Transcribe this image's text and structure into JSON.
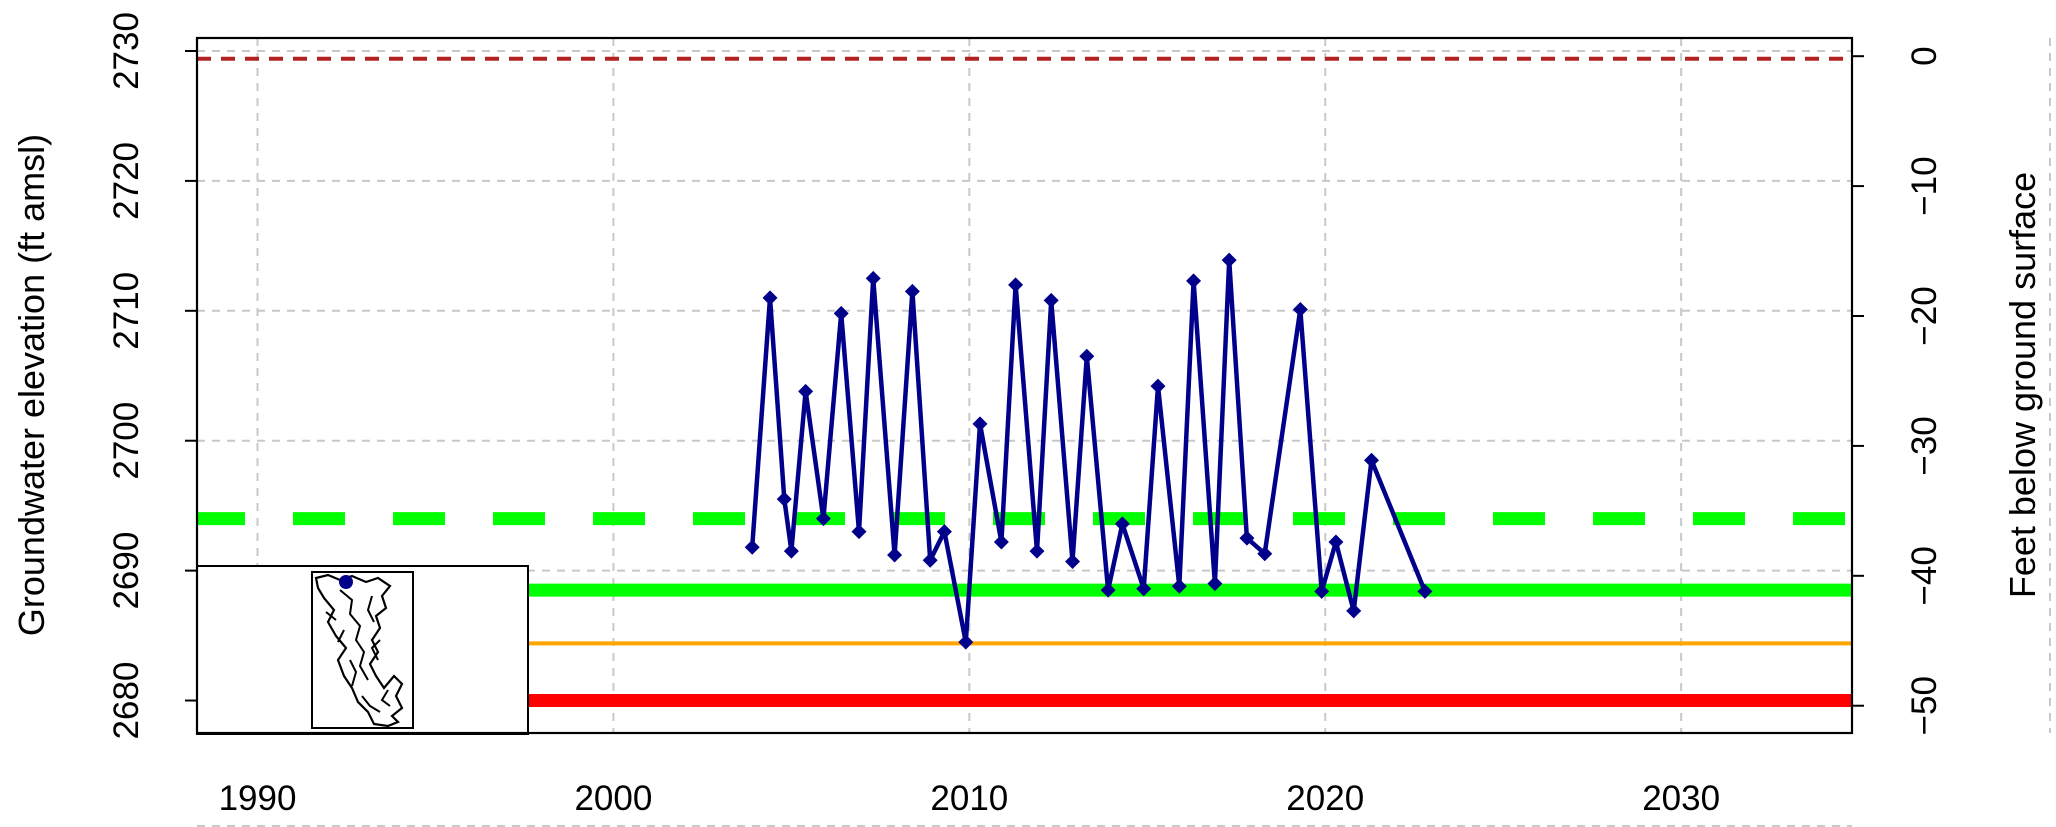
{
  "chart_data": {
    "type": "line",
    "title": "",
    "xlabel": "",
    "ylabel": "Groundwater elevation (ft amsl)",
    "y2label": "Feet below ground surface",
    "xlim": [
      1988.3,
      2034.8
    ],
    "ylim": [
      2677.5,
      2731
    ],
    "y2lim": [
      -52.1,
      1.4
    ],
    "x_ticks": [
      1990,
      2000,
      2010,
      2020,
      2030
    ],
    "y_ticks": [
      2680,
      2690,
      2700,
      2710,
      2720,
      2730
    ],
    "y2_ticks": [
      0,
      -10,
      -20,
      -30,
      -40,
      -50
    ],
    "y2_tick_labels": [
      "0",
      "−10",
      "−20",
      "−30",
      "−40",
      "−50"
    ],
    "grid": true,
    "reference_lines": [
      {
        "role": "ground-surface",
        "y": 2729.4,
        "color": "#b22222",
        "style": "dashed"
      },
      {
        "role": "dashed-green-threshold",
        "y": 2694,
        "color": "#00ff00",
        "style": "dashed"
      },
      {
        "role": "solid-green-threshold",
        "y": 2688.5,
        "color": "#00ff00",
        "style": "solid"
      },
      {
        "role": "orange-threshold",
        "y": 2684.4,
        "color": "#ffa500",
        "style": "solid"
      },
      {
        "role": "red-threshold",
        "y": 2680,
        "color": "#ff0000",
        "style": "solid"
      }
    ],
    "series": [
      {
        "color": "#00008b",
        "marker": "diamond",
        "x": [
          2003.9,
          2004.4,
          2004.8,
          2005.0,
          2005.4,
          2005.9,
          2006.4,
          2006.9,
          2007.3,
          2007.9,
          2008.4,
          2008.9,
          2009.3,
          2009.9,
          2010.3,
          2010.9,
          2011.3,
          2011.9,
          2012.3,
          2012.9,
          2013.3,
          2013.9,
          2014.3,
          2014.9,
          2015.3,
          2015.9,
          2016.3,
          2016.9,
          2017.3,
          2017.8,
          2018.3,
          2019.3,
          2019.9,
          2020.3,
          2020.8,
          2021.3,
          2022.8
        ],
        "y": [
          2691.8,
          2711.0,
          2695.5,
          2691.5,
          2703.8,
          2694.0,
          2709.8,
          2693.0,
          2712.5,
          2691.2,
          2711.5,
          2690.8,
          2693.0,
          2684.5,
          2701.3,
          2692.2,
          2712.0,
          2691.5,
          2710.8,
          2690.7,
          2706.5,
          2688.5,
          2693.6,
          2688.6,
          2704.2,
          2688.8,
          2712.3,
          2689.0,
          2713.9,
          2692.5,
          2691.3,
          2710.1,
          2688.4,
          2692.2,
          2686.9,
          2698.5,
          2688.4
        ]
      }
    ]
  },
  "inset_map": {
    "description_color": "#000000",
    "well_marker_color": "#00008b"
  }
}
